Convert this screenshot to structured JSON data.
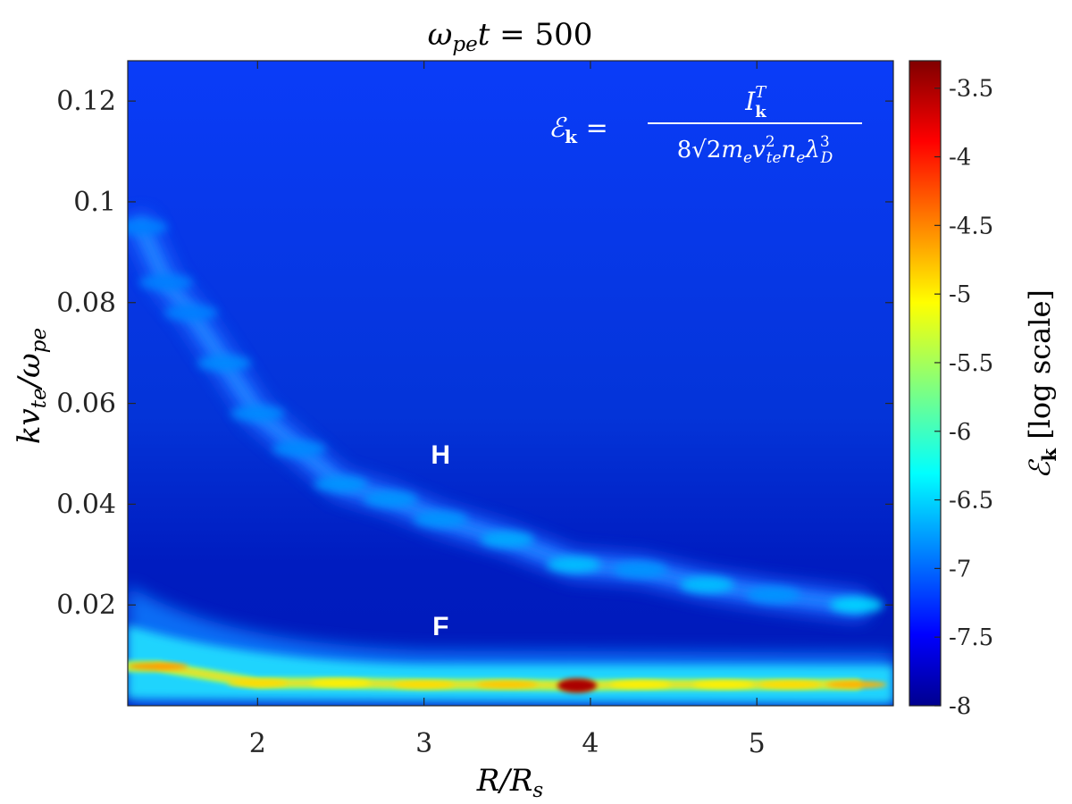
{
  "chart_data": {
    "type": "heatmap",
    "title": "ω_pe t = 500",
    "xlabel": "R/R_s",
    "ylabel": "kv_te/ω_pe",
    "xlim": [
      1.22,
      5.82
    ],
    "ylim": [
      0.0,
      0.128
    ],
    "xticks": [
      2,
      3,
      4,
      5
    ],
    "xtick_labels": [
      "2",
      "3",
      "4",
      "5"
    ],
    "yticks": [
      0.02,
      0.04,
      0.06,
      0.08,
      0.1,
      0.12
    ],
    "ytick_labels": [
      "0.02",
      "0.04",
      "0.06",
      "0.08",
      "0.1",
      "0.12"
    ],
    "colorbar": {
      "label": "ℰ_k [log scale]",
      "range": [
        -8,
        -3.3
      ],
      "ticks": [
        -8,
        -7.5,
        -7,
        -6.5,
        -6,
        -5.5,
        -5,
        -4.5,
        -4,
        -3.5
      ],
      "tick_labels": [
        "-8",
        "-7.5",
        "-7",
        "-6.5",
        "-6",
        "-5.5",
        "-5",
        "-4.5",
        "-4",
        "-3.5"
      ],
      "colormap": "jet"
    },
    "background_value": -7.5,
    "equation": {
      "lhs": "ℰ_k =",
      "numerator": "I_k^T",
      "denominator": "8√2 m_e v_te² n_e λ_D³"
    },
    "annotations": [
      {
        "text": "H",
        "x": 3.1,
        "y": 0.05
      },
      {
        "text": "F",
        "x": 3.1,
        "y": 0.016
      }
    ],
    "harmonic_branch": {
      "name": "H",
      "points": [
        {
          "x": 1.3,
          "y": 0.095,
          "value": -6.9
        },
        {
          "x": 1.45,
          "y": 0.084,
          "value": -6.9
        },
        {
          "x": 1.6,
          "y": 0.078,
          "value": -6.9
        },
        {
          "x": 1.8,
          "y": 0.068,
          "value": -6.85
        },
        {
          "x": 2.0,
          "y": 0.058,
          "value": -6.85
        },
        {
          "x": 2.25,
          "y": 0.051,
          "value": -6.85
        },
        {
          "x": 2.5,
          "y": 0.044,
          "value": -6.8
        },
        {
          "x": 2.8,
          "y": 0.041,
          "value": -6.8
        },
        {
          "x": 3.1,
          "y": 0.037,
          "value": -6.8
        },
        {
          "x": 3.5,
          "y": 0.033,
          "value": -6.7
        },
        {
          "x": 3.9,
          "y": 0.028,
          "value": -6.6
        },
        {
          "x": 4.3,
          "y": 0.027,
          "value": -6.8
        },
        {
          "x": 4.7,
          "y": 0.024,
          "value": -6.6
        },
        {
          "x": 5.1,
          "y": 0.022,
          "value": -6.8
        },
        {
          "x": 5.6,
          "y": 0.02,
          "value": -6.5
        }
      ]
    },
    "fundamental_branch": {
      "name": "F",
      "points": [
        {
          "x": 1.4,
          "y": 0.0078,
          "value": -4.6
        },
        {
          "x": 2.0,
          "y": 0.0045,
          "value": -4.9
        },
        {
          "x": 2.5,
          "y": 0.0045,
          "value": -5.0
        },
        {
          "x": 3.0,
          "y": 0.0042,
          "value": -4.9
        },
        {
          "x": 3.5,
          "y": 0.0042,
          "value": -4.8
        },
        {
          "x": 3.92,
          "y": 0.004,
          "value": -3.5
        },
        {
          "x": 4.3,
          "y": 0.0042,
          "value": -5.0
        },
        {
          "x": 4.8,
          "y": 0.0042,
          "value": -5.0
        },
        {
          "x": 5.2,
          "y": 0.0042,
          "value": -4.9
        },
        {
          "x": 5.6,
          "y": 0.0042,
          "value": -4.7
        }
      ]
    }
  }
}
